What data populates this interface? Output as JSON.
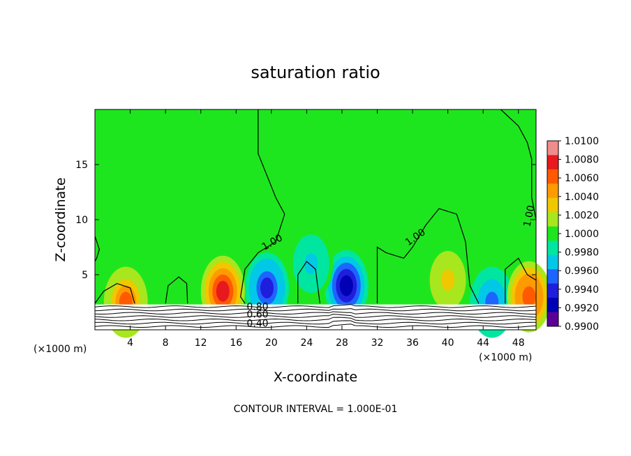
{
  "chart_data": {
    "type": "heatmap",
    "title": "saturation ratio",
    "xlabel": "X-coordinate",
    "ylabel": "Z-coordinate",
    "x_unit_left": "(×1000 m)",
    "x_unit_right": "(×1000 m)",
    "footer": "CONTOUR INTERVAL = 1.000E-01",
    "xlim": [
      0,
      50
    ],
    "ylim": [
      0,
      20
    ],
    "xticks": [
      "4",
      "8",
      "12",
      "16",
      "20",
      "24",
      "28",
      "32",
      "36",
      "40",
      "44",
      "48"
    ],
    "xtick_values": [
      4,
      8,
      12,
      16,
      20,
      24,
      28,
      32,
      36,
      40,
      44,
      48
    ],
    "yticks": [
      "5",
      "10",
      "15"
    ],
    "ytick_values": [
      5,
      10,
      15
    ],
    "colorbar": {
      "labels": [
        "1.0100",
        "1.0080",
        "1.0060",
        "1.0040",
        "1.0020",
        "1.0000",
        "0.9980",
        "0.9960",
        "0.9940",
        "0.9920",
        "0.9900"
      ],
      "colors": [
        "#f08c8c",
        "#e8191e",
        "#ff5a00",
        "#ff9b00",
        "#f0c800",
        "#a8e61e",
        "#1ee61e",
        "#00e6a0",
        "#00c8e6",
        "#1e64ff",
        "#1e1edc",
        "#0000b4",
        "#5a0096"
      ]
    },
    "contour_labels": [
      "1.00",
      "1.00",
      "1.00",
      "0.80",
      "0.60",
      "0.40"
    ],
    "blobs": [
      {
        "x": 14.5,
        "z": 3.5,
        "level": 1.0085
      },
      {
        "x": 3.5,
        "z": 2.5,
        "level": 1.006
      },
      {
        "x": 28.5,
        "z": 4.0,
        "level": 0.9915
      },
      {
        "x": 19.5,
        "z": 3.8,
        "level": 0.9935
      },
      {
        "x": 40.0,
        "z": 4.5,
        "level": 1.003
      },
      {
        "x": 45.0,
        "z": 2.5,
        "level": 0.9955
      },
      {
        "x": 49.2,
        "z": 3.0,
        "level": 1.007
      },
      {
        "x": 24.5,
        "z": 6.0,
        "level": 0.997
      }
    ]
  }
}
